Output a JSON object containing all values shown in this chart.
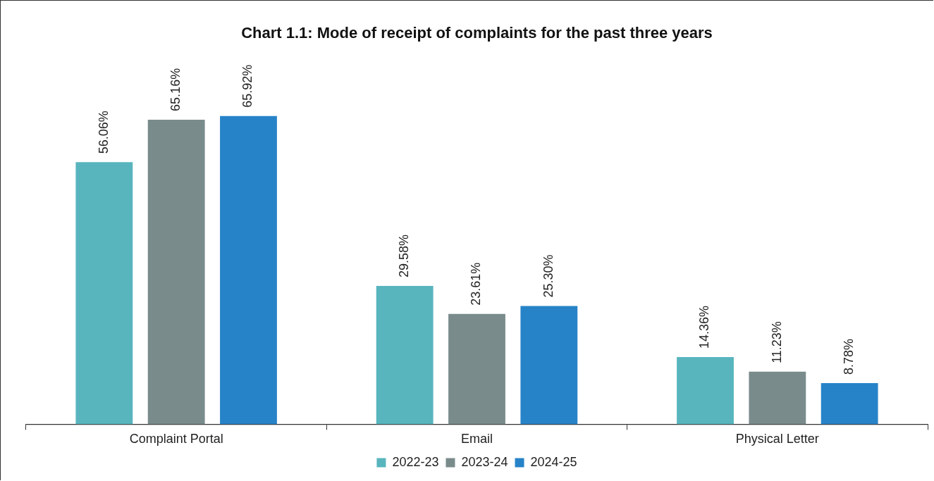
{
  "chart_data": {
    "type": "bar",
    "title": "Chart 1.1: Mode of receipt of complaints for the past three years",
    "categories": [
      "Complaint Portal",
      "Email",
      "Physical Letter"
    ],
    "series": [
      {
        "name": "2022-23",
        "color": "#58b5be",
        "values": [
          56.06,
          29.58,
          14.36
        ],
        "value_labels": [
          "56.06%",
          "29.58%",
          "14.36%"
        ]
      },
      {
        "name": "2023-24",
        "color": "#7a8b8c",
        "values": [
          65.16,
          23.61,
          11.23
        ],
        "value_labels": [
          "65.16%",
          "23.61%",
          "11.23%"
        ]
      },
      {
        "name": "2024-25",
        "color": "#2783c8",
        "values": [
          65.92,
          25.3,
          8.78
        ],
        "value_labels": [
          "65.92%",
          "25.30%",
          "8.78%"
        ]
      }
    ],
    "grid": false,
    "legend": "bottom"
  }
}
